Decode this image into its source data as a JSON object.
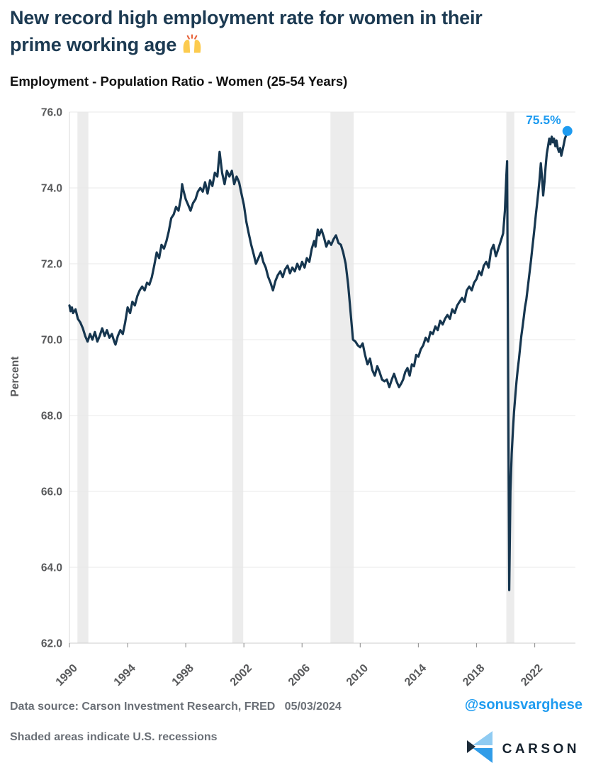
{
  "page": {
    "title_line1": "New record high employment rate for women in their",
    "title_line2": "prime working age",
    "title_emoji": "🙌",
    "subtitle": "Employment - Population Ratio - Women (25-54 Years)"
  },
  "footer": {
    "source": "Data source: Carson Investment Research, FRED   05/03/2024",
    "handle": "@sonusvarghese",
    "note": "Shaded areas indicate U.S. recessions",
    "brand": "CARSON"
  },
  "colors": {
    "title": "#1C3A52",
    "line": "#16364F",
    "accent_blue": "#1D9BF0",
    "gray_text": "#6B7077",
    "tick_text": "#58595B",
    "band": "#ECECEC",
    "grid": "#E8E8E8",
    "axis": "#CCCCCC",
    "tick_mark": "#9A9A9A",
    "logo_light_blue": "#8FCBF2",
    "logo_blue": "#309CE8",
    "logo_dark": "#1C2B39"
  },
  "chart_data": {
    "type": "line",
    "title": "Employment - Population Ratio - Women (25-54 Years)",
    "xlabel": "",
    "ylabel": "Percent",
    "ylim": [
      62.0,
      76.0
    ],
    "ytick_step": 2.0,
    "xlim": [
      1990,
      2024.8
    ],
    "xticks": [
      1990,
      1994,
      1998,
      2002,
      2006,
      2010,
      2014,
      2018,
      2022
    ],
    "grid": true,
    "legend": false,
    "last_point_label": "75.5%",
    "recessions": [
      [
        1990.55,
        1991.3
      ],
      [
        2001.2,
        2001.95
      ],
      [
        2007.95,
        2009.55
      ],
      [
        2020.05,
        2020.6
      ]
    ],
    "series": [
      {
        "name": "Employment-Population Ratio, Women 25-54 (%)",
        "points": [
          [
            1990.0,
            70.9
          ],
          [
            1990.08,
            70.75
          ],
          [
            1990.17,
            70.85
          ],
          [
            1990.25,
            70.7
          ],
          [
            1990.42,
            70.8
          ],
          [
            1990.58,
            70.55
          ],
          [
            1990.75,
            70.45
          ],
          [
            1990.92,
            70.3
          ],
          [
            1991.08,
            70.1
          ],
          [
            1991.25,
            69.95
          ],
          [
            1991.42,
            70.15
          ],
          [
            1991.58,
            70.0
          ],
          [
            1991.75,
            70.2
          ],
          [
            1991.92,
            69.95
          ],
          [
            1992.08,
            70.1
          ],
          [
            1992.25,
            70.3
          ],
          [
            1992.42,
            70.1
          ],
          [
            1992.58,
            70.25
          ],
          [
            1992.75,
            70.05
          ],
          [
            1992.92,
            70.15
          ],
          [
            1993.08,
            69.95
          ],
          [
            1993.17,
            69.87
          ],
          [
            1993.33,
            70.1
          ],
          [
            1993.5,
            70.25
          ],
          [
            1993.67,
            70.15
          ],
          [
            1993.83,
            70.45
          ],
          [
            1994.0,
            70.85
          ],
          [
            1994.17,
            70.7
          ],
          [
            1994.33,
            71.0
          ],
          [
            1994.5,
            70.9
          ],
          [
            1994.67,
            71.15
          ],
          [
            1994.83,
            71.3
          ],
          [
            1995.0,
            71.4
          ],
          [
            1995.17,
            71.3
          ],
          [
            1995.33,
            71.5
          ],
          [
            1995.5,
            71.45
          ],
          [
            1995.67,
            71.65
          ],
          [
            1995.83,
            71.95
          ],
          [
            1996.0,
            72.3
          ],
          [
            1996.17,
            72.15
          ],
          [
            1996.33,
            72.5
          ],
          [
            1996.5,
            72.4
          ],
          [
            1996.67,
            72.6
          ],
          [
            1996.83,
            72.85
          ],
          [
            1997.0,
            73.2
          ],
          [
            1997.17,
            73.3
          ],
          [
            1997.33,
            73.5
          ],
          [
            1997.5,
            73.4
          ],
          [
            1997.67,
            73.75
          ],
          [
            1997.75,
            74.1
          ],
          [
            1997.83,
            73.95
          ],
          [
            1998.0,
            73.7
          ],
          [
            1998.17,
            73.55
          ],
          [
            1998.33,
            73.4
          ],
          [
            1998.5,
            73.6
          ],
          [
            1998.67,
            73.7
          ],
          [
            1998.83,
            73.9
          ],
          [
            1999.0,
            74.0
          ],
          [
            1999.17,
            73.9
          ],
          [
            1999.33,
            74.15
          ],
          [
            1999.5,
            73.85
          ],
          [
            1999.67,
            74.2
          ],
          [
            1999.83,
            74.05
          ],
          [
            2000.0,
            74.4
          ],
          [
            2000.17,
            74.3
          ],
          [
            2000.33,
            74.95
          ],
          [
            2000.5,
            74.4
          ],
          [
            2000.67,
            74.1
          ],
          [
            2000.83,
            74.45
          ],
          [
            2001.0,
            74.3
          ],
          [
            2001.17,
            74.45
          ],
          [
            2001.33,
            74.1
          ],
          [
            2001.5,
            74.3
          ],
          [
            2001.67,
            74.15
          ],
          [
            2001.83,
            73.85
          ],
          [
            2002.0,
            73.55
          ],
          [
            2002.17,
            73.1
          ],
          [
            2002.33,
            72.8
          ],
          [
            2002.5,
            72.5
          ],
          [
            2002.67,
            72.25
          ],
          [
            2002.83,
            72.0
          ],
          [
            2003.0,
            72.15
          ],
          [
            2003.17,
            72.3
          ],
          [
            2003.33,
            72.05
          ],
          [
            2003.5,
            71.9
          ],
          [
            2003.67,
            71.65
          ],
          [
            2003.83,
            71.5
          ],
          [
            2004.0,
            71.3
          ],
          [
            2004.17,
            71.55
          ],
          [
            2004.33,
            71.7
          ],
          [
            2004.5,
            71.8
          ],
          [
            2004.67,
            71.65
          ],
          [
            2004.83,
            71.85
          ],
          [
            2005.0,
            71.95
          ],
          [
            2005.17,
            71.75
          ],
          [
            2005.33,
            71.9
          ],
          [
            2005.5,
            71.8
          ],
          [
            2005.67,
            72.0
          ],
          [
            2005.83,
            71.85
          ],
          [
            2006.0,
            72.05
          ],
          [
            2006.17,
            71.9
          ],
          [
            2006.33,
            72.15
          ],
          [
            2006.5,
            72.05
          ],
          [
            2006.67,
            72.4
          ],
          [
            2006.83,
            72.6
          ],
          [
            2006.92,
            72.45
          ],
          [
            2007.08,
            72.9
          ],
          [
            2007.17,
            72.75
          ],
          [
            2007.33,
            72.9
          ],
          [
            2007.5,
            72.7
          ],
          [
            2007.67,
            72.45
          ],
          [
            2007.83,
            72.6
          ],
          [
            2008.0,
            72.5
          ],
          [
            2008.17,
            72.65
          ],
          [
            2008.33,
            72.75
          ],
          [
            2008.5,
            72.55
          ],
          [
            2008.67,
            72.5
          ],
          [
            2008.83,
            72.3
          ],
          [
            2009.0,
            72.0
          ],
          [
            2009.17,
            71.45
          ],
          [
            2009.33,
            70.75
          ],
          [
            2009.5,
            70.0
          ],
          [
            2009.67,
            69.95
          ],
          [
            2009.83,
            69.85
          ],
          [
            2010.0,
            69.8
          ],
          [
            2010.17,
            69.9
          ],
          [
            2010.33,
            69.6
          ],
          [
            2010.5,
            69.35
          ],
          [
            2010.67,
            69.5
          ],
          [
            2010.83,
            69.2
          ],
          [
            2011.0,
            69.05
          ],
          [
            2011.17,
            69.3
          ],
          [
            2011.33,
            69.15
          ],
          [
            2011.5,
            68.95
          ],
          [
            2011.67,
            68.9
          ],
          [
            2011.83,
            68.95
          ],
          [
            2012.0,
            68.75
          ],
          [
            2012.17,
            68.95
          ],
          [
            2012.33,
            69.1
          ],
          [
            2012.5,
            68.9
          ],
          [
            2012.67,
            68.75
          ],
          [
            2012.83,
            68.85
          ],
          [
            2012.95,
            68.95
          ],
          [
            2013.1,
            69.15
          ],
          [
            2013.25,
            69.25
          ],
          [
            2013.4,
            69.05
          ],
          [
            2013.55,
            69.35
          ],
          [
            2013.7,
            69.3
          ],
          [
            2013.85,
            69.6
          ],
          [
            2014.0,
            69.55
          ],
          [
            2014.17,
            69.75
          ],
          [
            2014.33,
            69.85
          ],
          [
            2014.5,
            70.05
          ],
          [
            2014.67,
            69.95
          ],
          [
            2014.83,
            70.2
          ],
          [
            2015.0,
            70.15
          ],
          [
            2015.17,
            70.35
          ],
          [
            2015.33,
            70.25
          ],
          [
            2015.5,
            70.5
          ],
          [
            2015.67,
            70.4
          ],
          [
            2015.83,
            70.55
          ],
          [
            2016.0,
            70.65
          ],
          [
            2016.17,
            70.55
          ],
          [
            2016.33,
            70.8
          ],
          [
            2016.5,
            70.7
          ],
          [
            2016.67,
            70.9
          ],
          [
            2016.83,
            71.0
          ],
          [
            2017.0,
            71.1
          ],
          [
            2017.17,
            71.0
          ],
          [
            2017.33,
            71.3
          ],
          [
            2017.5,
            71.4
          ],
          [
            2017.67,
            71.3
          ],
          [
            2017.83,
            71.5
          ],
          [
            2018.0,
            71.6
          ],
          [
            2018.17,
            71.8
          ],
          [
            2018.33,
            71.7
          ],
          [
            2018.5,
            71.95
          ],
          [
            2018.67,
            72.05
          ],
          [
            2018.83,
            71.9
          ],
          [
            2019.0,
            72.35
          ],
          [
            2019.17,
            72.5
          ],
          [
            2019.33,
            72.2
          ],
          [
            2019.5,
            72.4
          ],
          [
            2019.67,
            72.6
          ],
          [
            2019.83,
            72.8
          ],
          [
            2019.95,
            73.4
          ],
          [
            2020.05,
            74.3
          ],
          [
            2020.1,
            74.7
          ],
          [
            2020.25,
            63.4
          ],
          [
            2020.33,
            66.0
          ],
          [
            2020.42,
            67.0
          ],
          [
            2020.5,
            67.6
          ],
          [
            2020.58,
            68.1
          ],
          [
            2020.67,
            68.55
          ],
          [
            2020.75,
            68.9
          ],
          [
            2020.83,
            69.2
          ],
          [
            2020.92,
            69.5
          ],
          [
            2021.0,
            69.8
          ],
          [
            2021.08,
            70.1
          ],
          [
            2021.17,
            70.35
          ],
          [
            2021.25,
            70.6
          ],
          [
            2021.33,
            70.85
          ],
          [
            2021.42,
            71.05
          ],
          [
            2021.5,
            71.3
          ],
          [
            2021.58,
            71.55
          ],
          [
            2021.67,
            71.85
          ],
          [
            2021.75,
            72.1
          ],
          [
            2021.83,
            72.4
          ],
          [
            2021.92,
            72.7
          ],
          [
            2022.0,
            73.0
          ],
          [
            2022.08,
            73.3
          ],
          [
            2022.17,
            73.6
          ],
          [
            2022.25,
            73.9
          ],
          [
            2022.33,
            74.2
          ],
          [
            2022.42,
            74.65
          ],
          [
            2022.5,
            74.3
          ],
          [
            2022.58,
            73.8
          ],
          [
            2022.67,
            74.15
          ],
          [
            2022.75,
            74.55
          ],
          [
            2022.83,
            74.9
          ],
          [
            2022.92,
            75.1
          ],
          [
            2023.0,
            75.3
          ],
          [
            2023.08,
            75.15
          ],
          [
            2023.17,
            75.35
          ],
          [
            2023.25,
            75.2
          ],
          [
            2023.33,
            75.3
          ],
          [
            2023.42,
            75.1
          ],
          [
            2023.5,
            75.25
          ],
          [
            2023.58,
            75.05
          ],
          [
            2023.67,
            74.95
          ],
          [
            2023.75,
            75.05
          ],
          [
            2023.83,
            74.85
          ],
          [
            2023.92,
            75.0
          ],
          [
            2024.0,
            75.15
          ],
          [
            2024.08,
            75.3
          ],
          [
            2024.17,
            75.4
          ],
          [
            2024.25,
            75.5
          ]
        ]
      }
    ]
  }
}
